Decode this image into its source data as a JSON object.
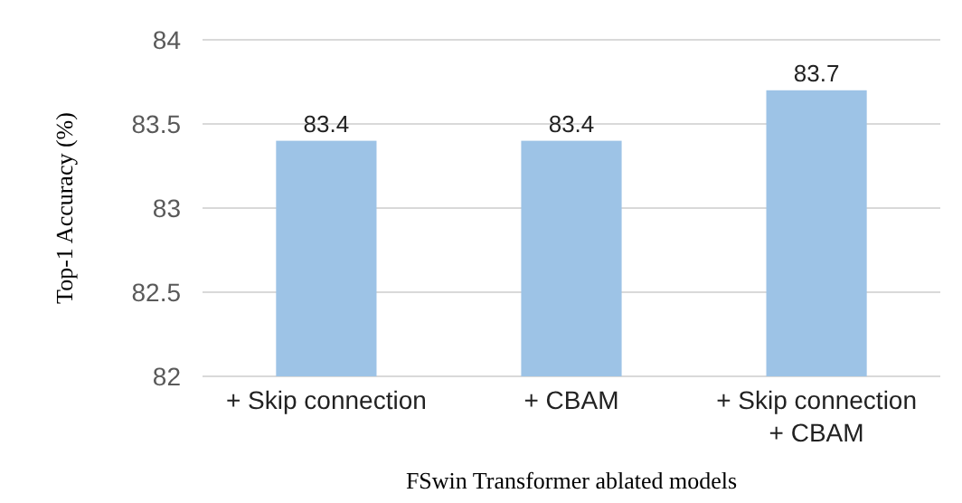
{
  "chart_data": {
    "type": "bar",
    "xlabel": "FSwin Transformer ablated models",
    "ylabel": "Top-1 Accuracy (%)",
    "categories": [
      "+ Skip connection",
      "+ CBAM",
      "+ Skip connection\n+ CBAM"
    ],
    "values": [
      83.4,
      83.4,
      83.7
    ],
    "color": "#9dc3e6",
    "ylim": [
      82,
      84
    ],
    "yticks": [
      82,
      82.5,
      83,
      83.5,
      84
    ],
    "grid": "y",
    "data_labels": true
  }
}
